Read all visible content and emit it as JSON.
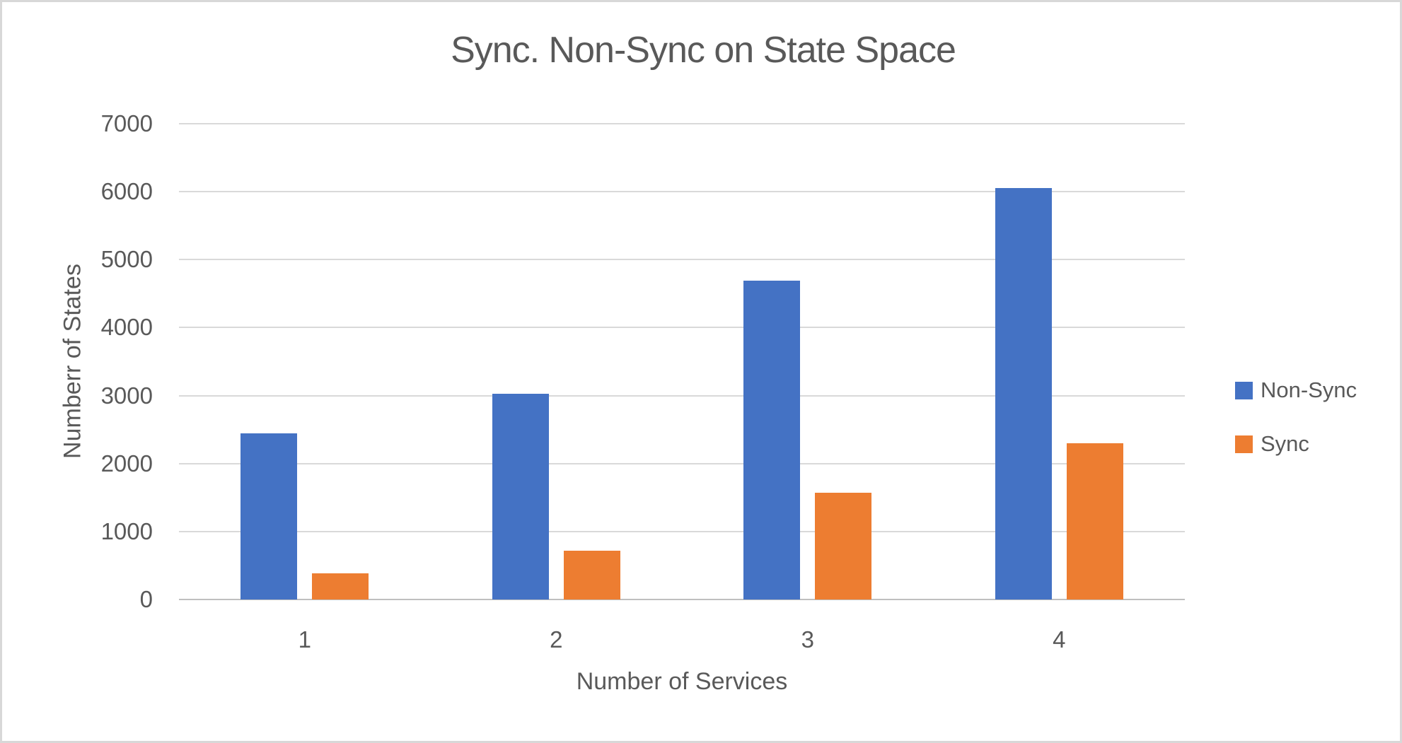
{
  "window": {
    "background": "#ffffff",
    "border_color": "#d8d8d8"
  },
  "chart_data": {
    "type": "bar",
    "title": "Sync. Non-Sync on State Space",
    "xlabel": "Number of Services",
    "ylabel": "Numberr of States",
    "categories": [
      "1",
      "2",
      "3",
      "4"
    ],
    "series": [
      {
        "name": "Non-Sync",
        "color": "#4472C4",
        "values": [
          2440,
          3030,
          4690,
          6050
        ]
      },
      {
        "name": "Sync",
        "color": "#ED7D31",
        "values": [
          390,
          720,
          1575,
          2300
        ]
      }
    ],
    "ylim": [
      0,
      7000
    ],
    "y_ticks": [
      0,
      1000,
      2000,
      3000,
      4000,
      5000,
      6000,
      7000
    ],
    "grid": "horizontal",
    "legend_position": "right",
    "colors": {
      "gridline": "#D9D9D9",
      "axis_line": "#BFBFBF",
      "text": "#595959"
    }
  }
}
